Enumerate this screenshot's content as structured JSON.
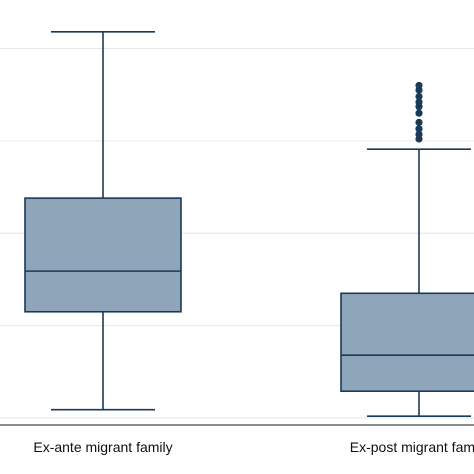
{
  "chart_data": {
    "type": "box",
    "categories": [
      "Ex-ante migrant family",
      "Ex-post migrant family"
    ],
    "boxes": [
      {
        "category": "Ex-ante migrant family",
        "whisker_low": 0.09,
        "q1": 1.15,
        "median": 1.59,
        "q3": 2.38,
        "whisker_high": 4.18,
        "outliers": []
      },
      {
        "category": "Ex-post migrant family",
        "whisker_low": 0.02,
        "q1": 0.29,
        "median": 0.68,
        "q3": 1.35,
        "whisker_high": 2.91,
        "outliers": [
          3.02,
          3.07,
          3.13,
          3.2,
          3.3,
          3.37,
          3.42,
          3.48,
          3.55,
          3.6
        ]
      }
    ],
    "ylim": [
      0,
      4.2
    ],
    "yticks": [
      0,
      1,
      2,
      3,
      4
    ],
    "grid": true,
    "xlabel": "",
    "ylabel": "",
    "title": "",
    "colors": {
      "box_fill": "#8fa5b9",
      "box_stroke": "#1b3a57",
      "outlier": "#1b3a57",
      "grid": "#e6e6e6"
    }
  }
}
